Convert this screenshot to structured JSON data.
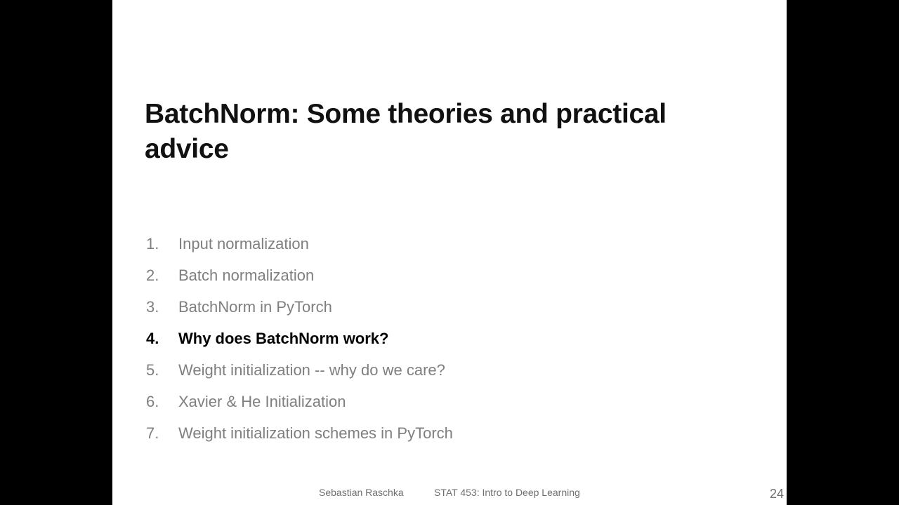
{
  "slide": {
    "title": "BatchNorm: Some theories and practical advice",
    "agenda": [
      {
        "number": "1.",
        "label": "Input normalization",
        "active": false
      },
      {
        "number": "2.",
        "label": "Batch normalization",
        "active": false
      },
      {
        "number": "3.",
        "label": "BatchNorm in PyTorch",
        "active": false
      },
      {
        "number": "4.",
        "label": "Why does BatchNorm work?",
        "active": true
      },
      {
        "number": "5.",
        "label": "Weight initialization -- why do we care?",
        "active": false
      },
      {
        "number": "6.",
        "label": "Xavier & He Initialization",
        "active": false
      },
      {
        "number": "7.",
        "label": "Weight initialization schemes in PyTorch",
        "active": false
      }
    ],
    "footer": {
      "author": "Sebastian Raschka",
      "course": "STAT 453: Intro to Deep Learning",
      "page_number": "24"
    }
  }
}
